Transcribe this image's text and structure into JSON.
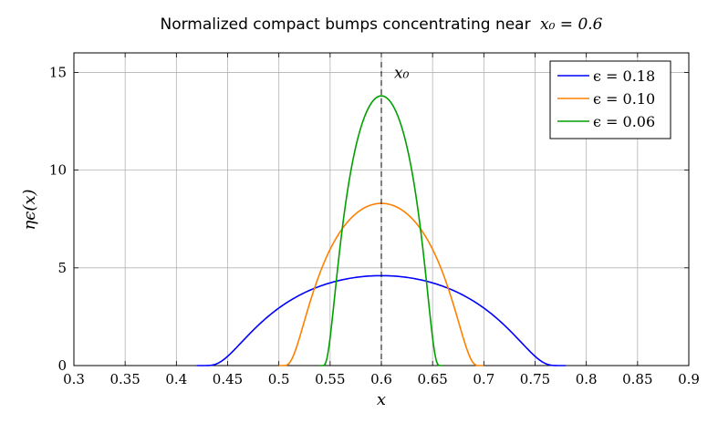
{
  "chart_data": {
    "type": "line",
    "title": "Normalized compact bumps concentrating near",
    "title_math": "x₀ = 0.6",
    "xlabel": "x",
    "ylabel": "ηϵ(x)",
    "xlim": [
      0.3,
      0.9
    ],
    "ylim": [
      0,
      16
    ],
    "x_ticks": [
      "0.3",
      "0.35",
      "0.4",
      "0.45",
      "0.5",
      "0.55",
      "0.6",
      "0.65",
      "0.7",
      "0.75",
      "0.8",
      "0.85",
      "0.9"
    ],
    "y_ticks": [
      "0",
      "5",
      "10",
      "15"
    ],
    "grid": true,
    "legend_position": "top-right",
    "center": 0.6,
    "center_label": "x₀",
    "series": [
      {
        "name": "ϵ = 0.18",
        "epsilon": 0.18,
        "peak": 4.6,
        "color": "#0000ff"
      },
      {
        "name": "ϵ = 0.10",
        "epsilon": 0.1,
        "peak": 8.3,
        "color": "#ff8000"
      },
      {
        "name": "ϵ = 0.06",
        "epsilon": 0.06,
        "peak": 13.8,
        "color": "#00a000"
      }
    ]
  }
}
